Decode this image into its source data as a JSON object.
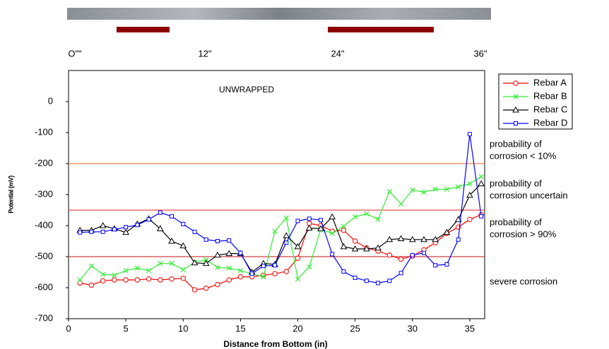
{
  "chart_data": {
    "type": "line",
    "ruler_labels": [
      "O\"\"",
      "12\"",
      "24\"",
      "36\""
    ],
    "annotation": "UNWRAPPED",
    "zone_labels": [
      [
        "probability of",
        "corrosion < 10%"
      ],
      [
        "probability of",
        "corrosion uncertain"
      ],
      [
        "probability of",
        "corrosion > 90%"
      ],
      [
        "severe corrosion"
      ]
    ],
    "x_label": "Distance from Bottom (in)",
    "y_label": "Potential (mV)",
    "xlim": [
      0,
      36.3
    ],
    "xticks": [
      0,
      5,
      10,
      15,
      20,
      25,
      30,
      35
    ],
    "ylim": [
      -700,
      100
    ],
    "yticks": [
      -700,
      -600,
      -500,
      -400,
      -300,
      -200,
      -100,
      0
    ],
    "hlines": [
      {
        "value": -200,
        "color": "#e8834a"
      },
      {
        "value": -350,
        "color": "#e05050"
      },
      {
        "value": -500,
        "color": "#d04040"
      }
    ],
    "x": [
      1,
      2,
      3,
      4,
      5,
      6,
      7,
      8,
      9,
      10,
      11,
      12,
      13,
      14,
      15,
      16,
      17,
      18,
      19,
      20,
      21,
      22,
      23,
      24,
      25,
      26,
      27,
      28,
      29,
      30,
      31,
      32,
      33,
      34,
      35,
      36
    ],
    "series": [
      {
        "name": "Rebar A",
        "color": "#ff0000",
        "marker": "circle",
        "values": [
          -585,
          -592,
          -578,
          -575,
          -575,
          -575,
          -572,
          -575,
          -572,
          -570,
          -607,
          -602,
          -590,
          -575,
          -565,
          -565,
          -560,
          -555,
          -548,
          -505,
          -393,
          -400,
          -418,
          -415,
          -450,
          -472,
          -482,
          -495,
          -508,
          -498,
          -478,
          -455,
          -425,
          -405,
          -380,
          -365
        ]
      },
      {
        "name": "Rebar B",
        "color": "#33ee33",
        "marker": "x",
        "values": [
          -575,
          -530,
          -557,
          -560,
          -545,
          -537,
          -545,
          -522,
          -522,
          -542,
          -518,
          -510,
          -535,
          -537,
          -545,
          -555,
          -565,
          -418,
          -375,
          -572,
          -533,
          -412,
          -425,
          -402,
          -372,
          -362,
          -380,
          -290,
          -330,
          -285,
          -292,
          -283,
          -283,
          -275,
          -265,
          -242
        ]
      },
      {
        "name": "Rebar C",
        "color": "#000000",
        "marker": "triangle",
        "values": [
          -415,
          -415,
          -400,
          -410,
          -422,
          -395,
          -378,
          -410,
          -450,
          -465,
          -520,
          -522,
          -495,
          -490,
          -490,
          -550,
          -522,
          -525,
          -432,
          -468,
          -408,
          -410,
          -372,
          -468,
          -475,
          -475,
          -472,
          -445,
          -442,
          -445,
          -445,
          -445,
          -422,
          -380,
          -302,
          -265
        ]
      },
      {
        "name": "Rebar D",
        "color": "#0000ff",
        "marker": "square",
        "values": [
          -422,
          -420,
          -420,
          -412,
          -405,
          -398,
          -380,
          -358,
          -370,
          -395,
          -420,
          -445,
          -450,
          -448,
          -488,
          -555,
          -530,
          -528,
          -455,
          -385,
          -378,
          -382,
          -492,
          -548,
          -568,
          -578,
          -585,
          -578,
          -553,
          -495,
          -488,
          -528,
          -525,
          -445,
          -105,
          -370
        ]
      }
    ]
  }
}
